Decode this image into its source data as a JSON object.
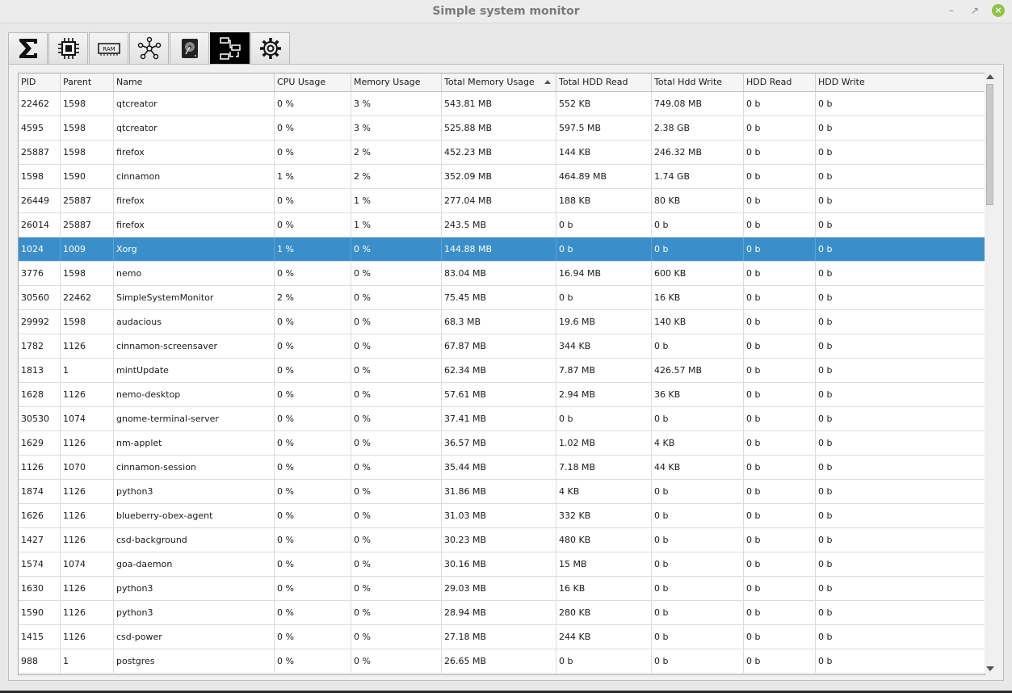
{
  "window": {
    "title": "Simple system monitor"
  },
  "tabs": [
    {
      "name": "summary-tab",
      "icon": "sigma-icon"
    },
    {
      "name": "cpu-tab",
      "icon": "cpu-chip-icon"
    },
    {
      "name": "ram-tab",
      "icon": "ram-module-icon",
      "label": "RAM"
    },
    {
      "name": "network-tab",
      "icon": "network-nodes-icon"
    },
    {
      "name": "disk-tab",
      "icon": "hard-disk-icon"
    },
    {
      "name": "processes-tab",
      "icon": "process-tree-icon",
      "active": true
    },
    {
      "name": "settings-tab",
      "icon": "gear-icon"
    }
  ],
  "table": {
    "sorted_column": "Total Memory Usage",
    "columns": [
      "PID",
      "Parent",
      "Name",
      "CPU Usage",
      "Memory Usage",
      "Total Memory Usage",
      "Total HDD Read",
      "Total Hdd Write",
      "HDD Read",
      "HDD Write"
    ],
    "selected_row": 6,
    "rows": [
      [
        "22462",
        "1598",
        "qtcreator",
        "0 %",
        "3 %",
        "543.81 MB",
        "552 KB",
        "749.08 MB",
        "0 b",
        "0 b"
      ],
      [
        "4595",
        "1598",
        "qtcreator",
        "0 %",
        "3 %",
        "525.88 MB",
        "597.5 MB",
        "2.38 GB",
        "0 b",
        "0 b"
      ],
      [
        "25887",
        "1598",
        "firefox",
        "0 %",
        "2 %",
        "452.23 MB",
        "144 KB",
        "246.32 MB",
        "0 b",
        "0 b"
      ],
      [
        "1598",
        "1590",
        "cinnamon",
        "1 %",
        "2 %",
        "352.09 MB",
        "464.89 MB",
        "1.74 GB",
        "0 b",
        "0 b"
      ],
      [
        "26449",
        "25887",
        "firefox",
        "0 %",
        "1 %",
        "277.04 MB",
        "188 KB",
        "80 KB",
        "0 b",
        "0 b"
      ],
      [
        "26014",
        "25887",
        "firefox",
        "0 %",
        "1 %",
        "243.5 MB",
        "0 b",
        "0 b",
        "0 b",
        "0 b"
      ],
      [
        "1024",
        "1009",
        "Xorg",
        "1 %",
        "0 %",
        "144.88 MB",
        "0 b",
        "0 b",
        "0 b",
        "0 b"
      ],
      [
        "3776",
        "1598",
        "nemo",
        "0 %",
        "0 %",
        "83.04 MB",
        "16.94 MB",
        "600 KB",
        "0 b",
        "0 b"
      ],
      [
        "30560",
        "22462",
        "SimpleSystemMonitor",
        "2 %",
        "0 %",
        "75.45 MB",
        "0 b",
        "16 KB",
        "0 b",
        "0 b"
      ],
      [
        "29992",
        "1598",
        "audacious",
        "0 %",
        "0 %",
        "68.3 MB",
        "19.6 MB",
        "140 KB",
        "0 b",
        "0 b"
      ],
      [
        "1782",
        "1126",
        "cinnamon-screensaver",
        "0 %",
        "0 %",
        "67.87 MB",
        "344 KB",
        "0 b",
        "0 b",
        "0 b"
      ],
      [
        "1813",
        "1",
        "mintUpdate",
        "0 %",
        "0 %",
        "62.34 MB",
        "7.87 MB",
        "426.57 MB",
        "0 b",
        "0 b"
      ],
      [
        "1628",
        "1126",
        "nemo-desktop",
        "0 %",
        "0 %",
        "57.61 MB",
        "2.94 MB",
        "36 KB",
        "0 b",
        "0 b"
      ],
      [
        "30530",
        "1074",
        "gnome-terminal-server",
        "0 %",
        "0 %",
        "37.41 MB",
        "0 b",
        "0 b",
        "0 b",
        "0 b"
      ],
      [
        "1629",
        "1126",
        "nm-applet",
        "0 %",
        "0 %",
        "36.57 MB",
        "1.02 MB",
        "4 KB",
        "0 b",
        "0 b"
      ],
      [
        "1126",
        "1070",
        "cinnamon-session",
        "0 %",
        "0 %",
        "35.44 MB",
        "7.18 MB",
        "44 KB",
        "0 b",
        "0 b"
      ],
      [
        "1874",
        "1126",
        "python3",
        "0 %",
        "0 %",
        "31.86 MB",
        "4 KB",
        "0 b",
        "0 b",
        "0 b"
      ],
      [
        "1626",
        "1126",
        "blueberry-obex-agent",
        "0 %",
        "0 %",
        "31.03 MB",
        "332 KB",
        "0 b",
        "0 b",
        "0 b"
      ],
      [
        "1427",
        "1126",
        "csd-background",
        "0 %",
        "0 %",
        "30.23 MB",
        "480 KB",
        "0 b",
        "0 b",
        "0 b"
      ],
      [
        "1574",
        "1074",
        "goa-daemon",
        "0 %",
        "0 %",
        "30.16 MB",
        "15 MB",
        "0 b",
        "0 b",
        "0 b"
      ],
      [
        "1630",
        "1126",
        "python3",
        "0 %",
        "0 %",
        "29.03 MB",
        "16 KB",
        "0 b",
        "0 b",
        "0 b"
      ],
      [
        "1590",
        "1126",
        "python3",
        "0 %",
        "0 %",
        "28.94 MB",
        "280 KB",
        "0 b",
        "0 b",
        "0 b"
      ],
      [
        "1415",
        "1126",
        "csd-power",
        "0 %",
        "0 %",
        "27.18 MB",
        "244 KB",
        "0 b",
        "0 b",
        "0 b"
      ],
      [
        "988",
        "1",
        "postgres",
        "0 %",
        "0 %",
        "26.65 MB",
        "0 b",
        "0 b",
        "0 b",
        "0 b"
      ]
    ]
  },
  "colors": {
    "selection": "#3a8fcb",
    "active_tab": "#000000"
  }
}
